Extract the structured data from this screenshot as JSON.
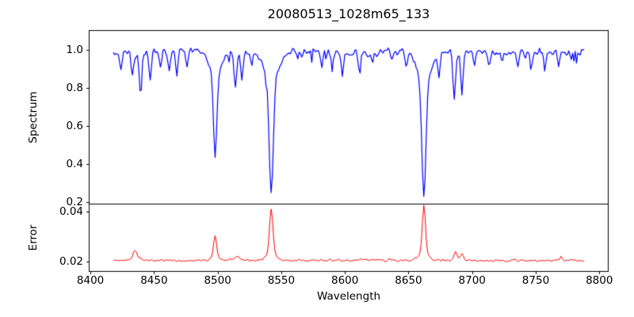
{
  "figure": {
    "background": "#ffffff",
    "axis_color": "#000000"
  },
  "chart_data": {
    "type": "line",
    "title": "20080513_1028m65_133",
    "xlabel": "Wavelength",
    "xlim": [
      8399,
      8807
    ],
    "x_data_range": [
      8418,
      8788
    ],
    "x_ticks": [
      8400,
      8450,
      8500,
      8550,
      8600,
      8650,
      8700,
      8750,
      8800
    ],
    "grid": false,
    "legend": null,
    "panels": [
      {
        "ylabel": "Spectrum",
        "ylim": [
          0.19,
          1.1
        ],
        "yticks": [
          {
            "v": 0.2,
            "label": "0.2"
          },
          {
            "v": 0.4,
            "label": "0.4"
          },
          {
            "v": 0.6,
            "label": "0.6"
          },
          {
            "v": 0.8,
            "label": "0.8"
          },
          {
            "v": 1.0,
            "label": "1.0"
          }
        ],
        "series": {
          "name": "spectrum",
          "color": "#0000ff",
          "continuum": 0.985,
          "noise_sigma": 0.016,
          "lines_format": "[center_wavelength, min_flux, sigma_angstrom]",
          "lines": [
            [
              8424,
              0.9,
              0.9
            ],
            [
              8433,
              0.87,
              0.9
            ],
            [
              8439.5,
              0.76,
              0.9
            ],
            [
              8447,
              0.84,
              0.9
            ],
            [
              8455,
              0.91,
              0.8
            ],
            [
              8462,
              0.9,
              0.8
            ],
            [
              8468,
              0.86,
              0.9
            ],
            [
              8476,
              0.92,
              0.8
            ],
            [
              8498.0,
              0.44,
              1.3
            ],
            [
              8514,
              0.8,
              1.0
            ],
            [
              8519,
              0.84,
              0.9
            ],
            [
              8527,
              0.91,
              0.8
            ],
            [
              8542.1,
              0.25,
              1.6
            ],
            [
              8582,
              0.91,
              0.8
            ],
            [
              8590,
              0.93,
              0.8
            ],
            [
              8598,
              0.85,
              0.9
            ],
            [
              8611,
              0.9,
              0.9
            ],
            [
              8622,
              0.92,
              0.8
            ],
            [
              8637,
              0.93,
              0.8
            ],
            [
              8648,
              0.9,
              0.9
            ],
            [
              8662.1,
              0.23,
              1.6
            ],
            [
              8674,
              0.85,
              0.9
            ],
            [
              8686,
              0.73,
              1.0
            ],
            [
              8692,
              0.76,
              0.9
            ],
            [
              8702,
              0.93,
              0.8
            ],
            [
              8713,
              0.91,
              0.9
            ],
            [
              8724,
              0.93,
              0.8
            ],
            [
              8736,
              0.91,
              0.9
            ],
            [
              8747,
              0.93,
              0.8
            ],
            [
              8757,
              0.9,
              0.9
            ],
            [
              8768,
              0.92,
              0.8
            ],
            [
              8778,
              0.93,
              0.8
            ]
          ]
        }
      },
      {
        "ylabel": "Error",
        "ylim": [
          0.016,
          0.043
        ],
        "yticks": [
          {
            "v": 0.02,
            "label": "0.02"
          },
          {
            "v": 0.04,
            "label": "0.04"
          }
        ],
        "series": {
          "name": "error",
          "color": "#ff0000",
          "baseline": 0.0204,
          "noise_sigma": 0.0003,
          "peaks_format": "[center_wavelength, peak_value, sigma_angstrom]",
          "peaks": [
            [
              8435,
              0.0242,
              1.5
            ],
            [
              8498,
              0.0302,
              1.2
            ],
            [
              8516,
              0.0224,
              1.4
            ],
            [
              8542.1,
              0.0408,
              1.3
            ],
            [
              8662.1,
              0.0426,
              1.2
            ],
            [
              8687,
              0.0236,
              1.1
            ],
            [
              8692,
              0.0227,
              1.0
            ],
            [
              8770,
              0.0218,
              0.9
            ]
          ]
        }
      }
    ]
  }
}
